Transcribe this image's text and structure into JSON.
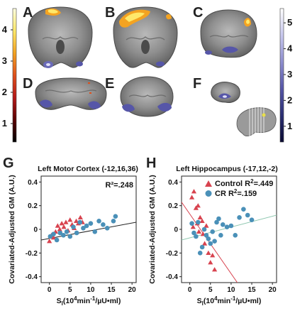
{
  "panels": {
    "letters": [
      "A",
      "B",
      "C",
      "D",
      "E",
      "F",
      "G",
      "H"
    ]
  },
  "colorbars": {
    "left_ticks": [
      "4",
      "3",
      "2",
      "1"
    ],
    "right_ticks": [
      "5",
      "4",
      "3",
      "2",
      "1"
    ],
    "warm_colors": [
      "#000000",
      "#5a0000",
      "#b51818",
      "#e0501a",
      "#f4a321",
      "#ffe96a",
      "#ffffe0"
    ],
    "cool_colors": [
      "#0a0a32",
      "#2b2f73",
      "#5656a8",
      "#8f8fd0",
      "#c8c8ee",
      "#ffffff"
    ]
  },
  "chart_data": [
    {
      "type": "scatter",
      "title": "Left Motor Cortex (-12,16,36)",
      "xlabel": "S",
      "xlabel_sub": "l",
      "xlabel_rest": "(10",
      "xlabel_sup": "4",
      "xlabel_tail": "min",
      "xlabel_sup2": "-1",
      "xlabel_end": "/µU•ml)",
      "ylabel": "Covariated-Adjusted GM (A.U.)",
      "xlim": [
        -2,
        21
      ],
      "ylim": [
        -0.45,
        0.45
      ],
      "xticks": [
        "0",
        "5",
        "10",
        "15",
        "20"
      ],
      "yticks": [
        "0.4",
        "0.2",
        "0",
        "-0.2",
        "-0.4"
      ],
      "annotation": "R²=.248",
      "grid": false,
      "fit_line": {
        "x": [
          -2,
          21
        ],
        "y": [
          -0.09,
          0.06
        ]
      },
      "series": [
        {
          "marker": "triangle",
          "color": "#d8434f",
          "points": [
            [
              0.0,
              -0.1
            ],
            [
              0.5,
              -0.05
            ],
            [
              1.0,
              -0.07
            ],
            [
              1.5,
              -0.02
            ],
            [
              2.0,
              0.03
            ],
            [
              2.5,
              0.0
            ],
            [
              3.0,
              0.05
            ],
            [
              3.5,
              0.02
            ],
            [
              4.0,
              0.06
            ],
            [
              4.5,
              -0.01
            ],
            [
              5.0,
              0.08
            ],
            [
              5.5,
              0.04
            ],
            [
              6.0,
              0.01
            ],
            [
              6.5,
              0.07
            ],
            [
              7.0,
              0.05
            ],
            [
              7.5,
              0.1
            ],
            [
              8.0,
              0.06
            ]
          ]
        },
        {
          "marker": "circle",
          "color": "#4a90b8",
          "points": [
            [
              0.2,
              -0.06
            ],
            [
              1.0,
              -0.04
            ],
            [
              1.8,
              -0.09
            ],
            [
              2.6,
              -0.03
            ],
            [
              3.4,
              -0.05
            ],
            [
              4.2,
              -0.02
            ],
            [
              5.0,
              -0.06
            ],
            [
              5.8,
              0.02
            ],
            [
              6.6,
              -0.03
            ],
            [
              7.4,
              0.06
            ],
            [
              8.2,
              0.01
            ],
            [
              9.0,
              0.03
            ],
            [
              10.0,
              0.05
            ],
            [
              11.0,
              -0.02
            ],
            [
              12.0,
              0.07
            ],
            [
              13.0,
              0.04
            ],
            [
              14.0,
              0.01
            ],
            [
              15.5,
              0.07
            ],
            [
              16.0,
              0.11
            ]
          ]
        }
      ]
    },
    {
      "type": "scatter",
      "title": "Left Hippocampus (-17,12,-2)",
      "xlabel": "S",
      "xlabel_sub": "l",
      "xlabel_rest": "(10",
      "xlabel_sup": "4",
      "xlabel_tail": "min",
      "xlabel_sup2": "-1",
      "xlabel_end": "/µU•ml)",
      "ylabel": "Covariated-Adjusted GM (A.U.)",
      "xlim": [
        -2,
        21
      ],
      "ylim": [
        -0.45,
        0.45
      ],
      "xticks": [
        "0",
        "5",
        "10",
        "15",
        "20"
      ],
      "yticks": [
        "0.4",
        "0.2",
        "0",
        "-0.2",
        "-0.4"
      ],
      "grid": false,
      "legend": [
        {
          "label": "Control R",
          "sup": "2",
          "value": "=.449",
          "marker": "triangle",
          "color": "#d8434f"
        },
        {
          "label": "CR R",
          "sup": "2",
          "value": "=.159",
          "marker": "circle",
          "color": "#4a90b8"
        }
      ],
      "fit_lines": [
        {
          "color": "#d8434f",
          "x": [
            -2,
            11.5
          ],
          "y": [
            0.23,
            -0.45
          ]
        },
        {
          "color": "#8fc7b0",
          "x": [
            -2,
            21
          ],
          "y": [
            -0.09,
            0.12
          ]
        }
      ],
      "series": [
        {
          "name": "Control",
          "marker": "triangle",
          "color": "#d8434f",
          "points": [
            [
              0.5,
              0.27
            ],
            [
              1.0,
              0.32
            ],
            [
              1.5,
              0.18
            ],
            [
              1.8,
              0.05
            ],
            [
              2.0,
              0.2
            ],
            [
              2.5,
              0.1
            ],
            [
              3.0,
              0.07
            ],
            [
              3.2,
              -0.04
            ],
            [
              3.6,
              -0.12
            ],
            [
              4.0,
              0.03
            ],
            [
              4.5,
              -0.2
            ],
            [
              5.0,
              -0.28
            ],
            [
              5.5,
              -0.22
            ],
            [
              6.0,
              -0.34
            ],
            [
              2.2,
              -0.02
            ],
            [
              0.8,
              0.02
            ]
          ]
        },
        {
          "name": "CR",
          "marker": "circle",
          "color": "#4a90b8",
          "points": [
            [
              0.5,
              0.05
            ],
            [
              1.0,
              -0.03
            ],
            [
              1.5,
              -0.06
            ],
            [
              2.0,
              0.06
            ],
            [
              2.5,
              -0.2
            ],
            [
              3.0,
              -0.15
            ],
            [
              3.5,
              0.0
            ],
            [
              4.0,
              -0.05
            ],
            [
              4.5,
              -0.08
            ],
            [
              5.0,
              -0.12
            ],
            [
              5.5,
              -0.02
            ],
            [
              6.0,
              -0.1
            ],
            [
              6.5,
              0.06
            ],
            [
              7.0,
              0.09
            ],
            [
              7.5,
              -0.05
            ],
            [
              8.0,
              0.04
            ],
            [
              9.0,
              0.02
            ],
            [
              10.0,
              0.03
            ],
            [
              11.0,
              -0.05
            ],
            [
              12.0,
              0.1
            ],
            [
              13.0,
              0.17
            ],
            [
              14.0,
              0.12
            ],
            [
              15.0,
              0.08
            ]
          ]
        }
      ]
    }
  ]
}
